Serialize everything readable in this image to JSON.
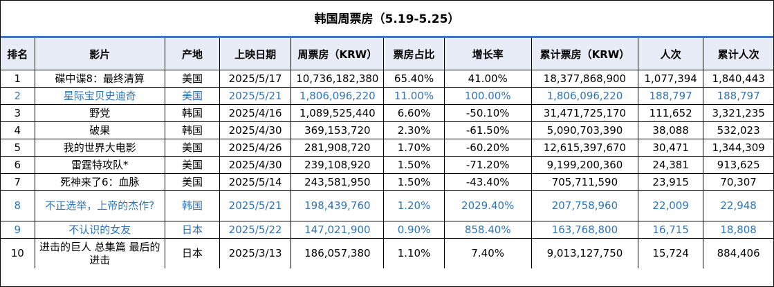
{
  "title": "韩国周票房（5.19-5.25）",
  "columns": [
    "排名",
    "影片",
    "产地",
    "上映日期",
    "周票房（KRW）",
    "票房占比",
    "增长率",
    "累计票房（KRW）",
    "人次",
    "累计人次"
  ],
  "rows": [
    {
      "rank": "1",
      "film": "碟中谍8：最终清算",
      "origin": "美国",
      "release": "2025/5/17",
      "weekly": "10,736,182,380",
      "share": "65.40%",
      "growth": "41.00%",
      "total": "18,377,868,900",
      "admissions": "1,077,394",
      "total_admissions": "1,840,443",
      "highlight": false
    },
    {
      "rank": "2",
      "film": "星际宝贝史迪奇",
      "origin": "美国",
      "release": "2025/5/21",
      "weekly": "1,806,096,220",
      "share": "11.00%",
      "growth": "100.00%",
      "total": "1,806,096,220",
      "admissions": "188,797",
      "total_admissions": "188,797",
      "highlight": true
    },
    {
      "rank": "3",
      "film": "野党",
      "origin": "韩国",
      "release": "2025/4/16",
      "weekly": "1,089,525,440",
      "share": "6.60%",
      "growth": "-50.10%",
      "total": "31,471,725,170",
      "admissions": "111,652",
      "total_admissions": "3,321,235",
      "highlight": false
    },
    {
      "rank": "4",
      "film": "破果",
      "origin": "韩国",
      "release": "2025/4/30",
      "weekly": "369,153,720",
      "share": "2.30%",
      "growth": "-61.50%",
      "total": "5,090,703,390",
      "admissions": "38,088",
      "total_admissions": "532,023",
      "highlight": false
    },
    {
      "rank": "5",
      "film": "我的世界大电影",
      "origin": "美国",
      "release": "2025/4/26",
      "weekly": "281,908,720",
      "share": "1.70%",
      "growth": "-60.20%",
      "total": "12,615,397,670",
      "admissions": "30,471",
      "total_admissions": "1,344,309",
      "highlight": false
    },
    {
      "rank": "6",
      "film": "雷霆特攻队*",
      "origin": "美国",
      "release": "2025/4/30",
      "weekly": "239,108,920",
      "share": "1.50%",
      "growth": "-71.20%",
      "total": "9,199,200,360",
      "admissions": "24,381",
      "total_admissions": "913,625",
      "highlight": false
    },
    {
      "rank": "7",
      "film": "死神来了6：血脉",
      "origin": "美国",
      "release": "2025/5/14",
      "weekly": "243,581,950",
      "share": "1.50%",
      "growth": "-43.40%",
      "total": "705,711,590",
      "admissions": "23,915",
      "total_admissions": "70,307",
      "highlight": false
    },
    {
      "rank": "8",
      "film": "不正选举，上帝的杰作?",
      "origin": "韩国",
      "release": "2025/5/21",
      "weekly": "198,439,760",
      "share": "1.20%",
      "growth": "2029.40%",
      "total": "207,758,960",
      "admissions": "22,009",
      "total_admissions": "22,948",
      "highlight": true
    },
    {
      "rank": "9",
      "film": "不认识的女友",
      "origin": "日本",
      "release": "2025/5/22",
      "weekly": "147,021,900",
      "share": "0.90%",
      "growth": "858.40%",
      "total": "163,768,800",
      "admissions": "16,715",
      "total_admissions": "18,808",
      "highlight": true
    },
    {
      "rank": "10",
      "film": "进击的巨人 总集篇 最后的进击",
      "origin": "日本",
      "release": "2025/3/13",
      "weekly": "186,057,380",
      "share": "1.10%",
      "growth": "7.40%",
      "total": "9,013,127,750",
      "admissions": "15,724",
      "total_admissions": "884,406",
      "highlight": false
    }
  ]
}
